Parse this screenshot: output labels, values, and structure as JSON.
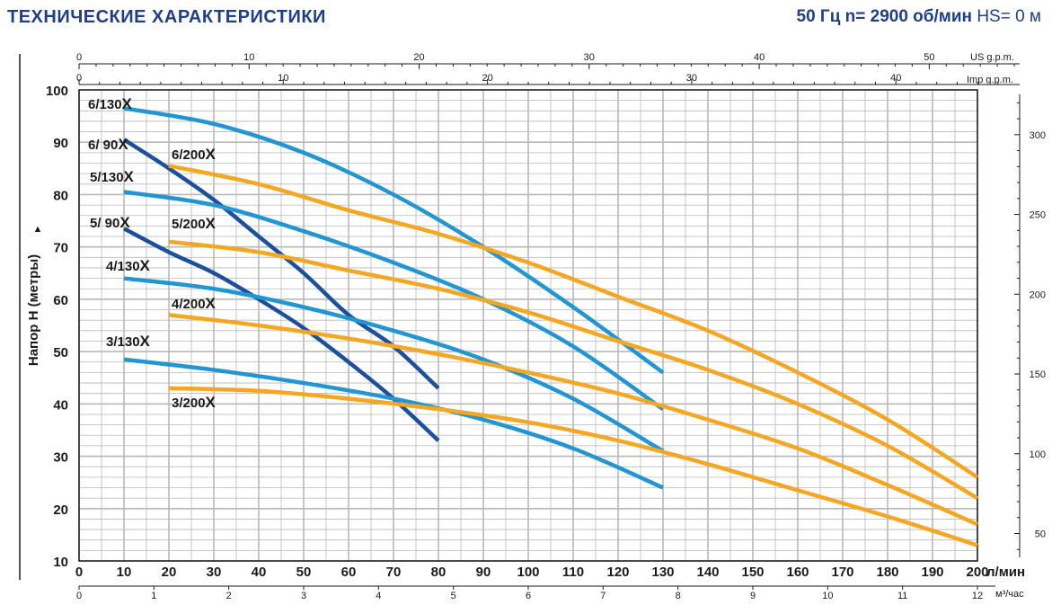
{
  "header": {
    "title": "ТЕХНИЧЕСКИЕ  ХАРАКТЕРИСТИКИ",
    "spec_bold": "50 Гц   n= 2900 об/мин",
    "spec_thin": "HS= 0 м"
  },
  "axes": {
    "y_label": "Напор Н (метры)",
    "y_arrow": "▲",
    "x_unit": "л/мин",
    "x2_unit": "м³/час",
    "top1_unit": "US g.p.m.",
    "top2_unit": "Imp g.p.m.",
    "right_ticks": [
      "50",
      "100",
      "150",
      "200",
      "250",
      "300"
    ],
    "top1_ticks": [
      "0",
      "10",
      "20",
      "30",
      "40",
      "50"
    ],
    "top2_ticks": [
      "0",
      "10",
      "20",
      "30",
      "40"
    ],
    "x2_ticks": [
      "0",
      "1",
      "2",
      "3",
      "4",
      "5",
      "6",
      "7",
      "8",
      "9",
      "10",
      "11",
      "12"
    ]
  },
  "colors": {
    "series_130": "#2196d3",
    "series_90": "#1c4f9c",
    "series_200": "#f5a623",
    "grid": "#b9b9b9",
    "title": "#1f3f8a"
  },
  "chart_data": {
    "type": "line",
    "title": "ТЕХНИЧЕСКИЕ  ХАРАКТЕРИСТИКИ",
    "xlabel": "л/мин",
    "ylabel": "Напор Н (метры)",
    "xlim": [
      0,
      200
    ],
    "ylim": [
      10,
      100
    ],
    "x_ticks": [
      "0",
      "10",
      "20",
      "30",
      "40",
      "50",
      "60",
      "70",
      "80",
      "90",
      "100",
      "110",
      "120",
      "130",
      "140",
      "150",
      "160",
      "170",
      "180",
      "190",
      "200"
    ],
    "y_ticks": [
      "10",
      "20",
      "30",
      "40",
      "50",
      "60",
      "70",
      "80",
      "90",
      "100"
    ],
    "grid": true,
    "series": [
      {
        "name": "6/130X",
        "color": "#2196d3",
        "label_main": "6/130",
        "label_x": "X",
        "x": [
          10,
          30,
          50,
          70,
          90,
          110,
          130
        ],
        "y": [
          96.5,
          93.5,
          88,
          80,
          70,
          58.5,
          46
        ]
      },
      {
        "name": "6/ 90X",
        "color": "#1c4f9c",
        "label_main": "6/ 90",
        "label_x": "X",
        "x": [
          10,
          20,
          30,
          40,
          50,
          60,
          70,
          80
        ],
        "y": [
          90.5,
          85,
          79,
          72,
          65,
          57,
          51,
          43
        ]
      },
      {
        "name": "6/200X",
        "color": "#f5a623",
        "label_main": "6/200",
        "label_x": "X",
        "x": [
          20,
          40,
          60,
          80,
          100,
          120,
          140,
          160,
          180,
          200
        ],
        "y": [
          85.5,
          82,
          77,
          72.5,
          67,
          60.5,
          54,
          46,
          37,
          26
        ]
      },
      {
        "name": "5/130X",
        "color": "#2196d3",
        "label_main": "5/130",
        "label_x": "X",
        "x": [
          10,
          30,
          50,
          70,
          90,
          110,
          130
        ],
        "y": [
          80.5,
          78,
          73,
          67,
          60,
          51,
          39
        ]
      },
      {
        "name": "5/ 90X",
        "color": "#1c4f9c",
        "label_main": "5/ 90",
        "label_x": "X",
        "x": [
          10,
          20,
          30,
          40,
          50,
          60,
          70,
          80
        ],
        "y": [
          73.5,
          69,
          65,
          60,
          54.5,
          48,
          41,
          33
        ]
      },
      {
        "name": "5/200X",
        "color": "#f5a623",
        "label_main": "5/200",
        "label_x": "X",
        "x": [
          20,
          40,
          60,
          80,
          100,
          120,
          140,
          160,
          180,
          200
        ],
        "y": [
          71,
          69,
          65.5,
          62,
          57.5,
          52,
          46.5,
          40,
          32,
          22
        ]
      },
      {
        "name": "4/130X",
        "color": "#2196d3",
        "label_main": "4/130",
        "label_x": "X",
        "x": [
          10,
          30,
          50,
          70,
          90,
          110,
          130
        ],
        "y": [
          64,
          62,
          58.5,
          54,
          48.5,
          41,
          31
        ]
      },
      {
        "name": "4/200X",
        "color": "#f5a623",
        "label_main": "4/200",
        "label_x": "X",
        "x": [
          20,
          40,
          60,
          80,
          100,
          120,
          140,
          160,
          180,
          200
        ],
        "y": [
          57,
          55,
          52.5,
          49.5,
          46,
          42,
          37,
          31.5,
          24.5,
          17
        ]
      },
      {
        "name": "3/130X",
        "color": "#2196d3",
        "label_main": "3/130",
        "label_x": "X",
        "x": [
          10,
          30,
          50,
          70,
          90,
          110,
          130
        ],
        "y": [
          48.5,
          46.5,
          44,
          41,
          37,
          31.5,
          24
        ]
      },
      {
        "name": "3/200X",
        "color": "#f5a623",
        "label_main": "3/200",
        "label_x": "X",
        "x": [
          20,
          40,
          60,
          80,
          100,
          120,
          140,
          160,
          180,
          200
        ],
        "y": [
          43,
          42.5,
          41,
          39,
          36.5,
          33,
          28.5,
          23.5,
          18.5,
          13
        ]
      }
    ]
  }
}
